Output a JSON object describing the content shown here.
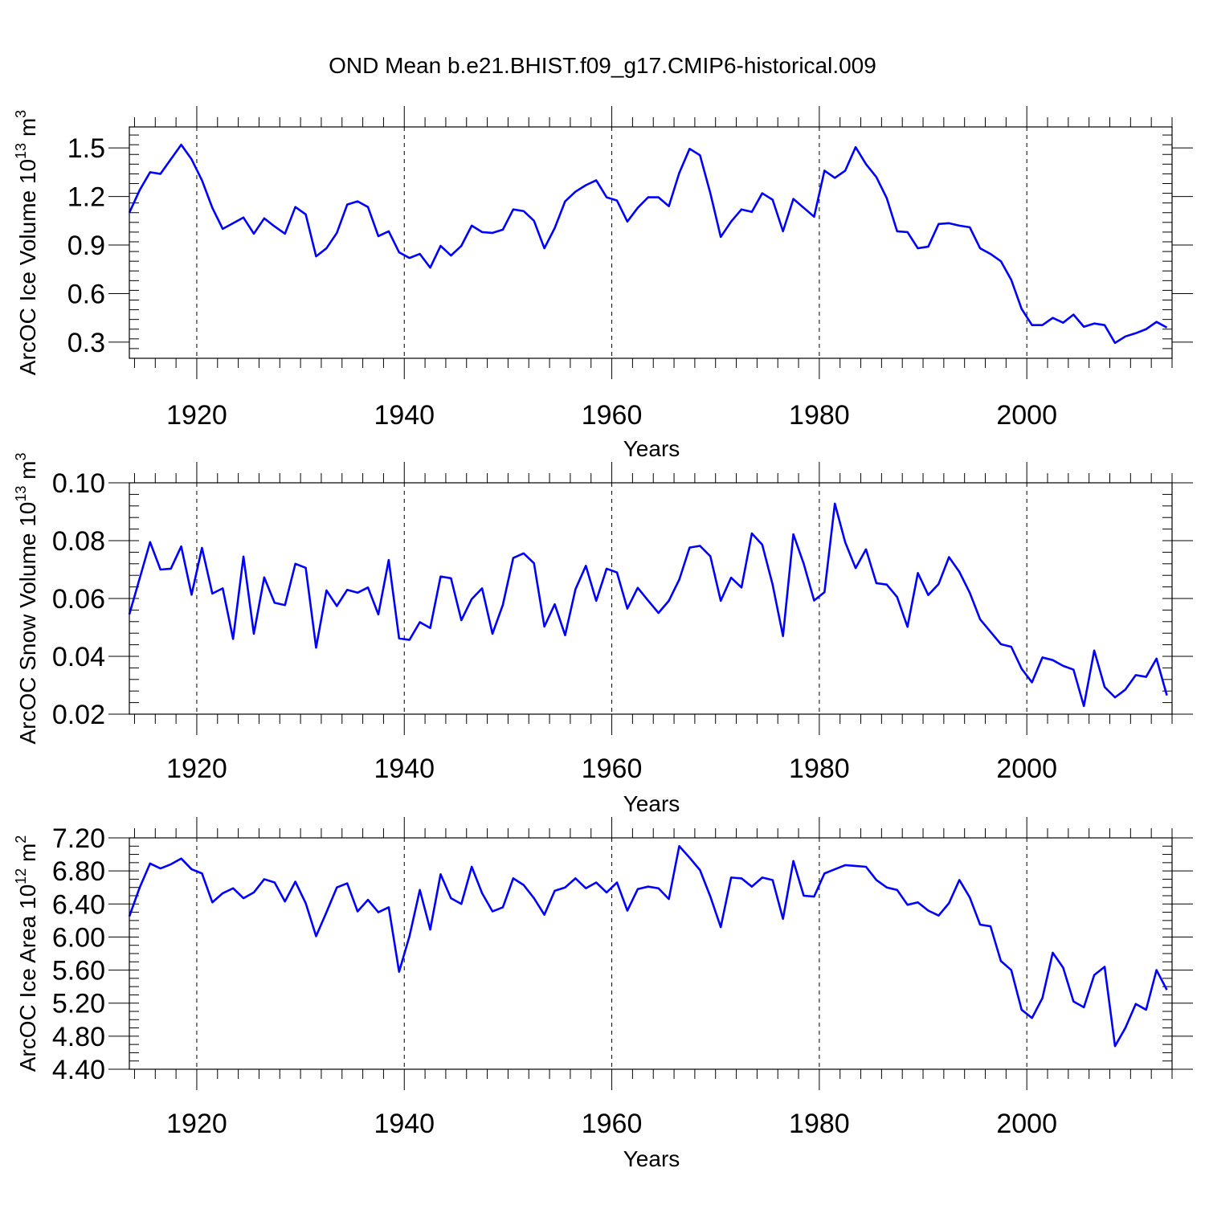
{
  "figure_title": "OND Mean b.e21.BHIST.f09_g17.CMIP6-historical.009",
  "colors": {
    "series": "#0000ff"
  },
  "chart_data": [
    {
      "type": "line",
      "name": "ice-volume",
      "title": "OND Mean b.e21.BHIST.f09_g17.CMIP6-historical.009",
      "xlabel": "Years",
      "ylabel": {
        "base": "ArcOC Ice Volume 10",
        "exp": "13",
        "unit": " m",
        "unit_exp": "3"
      },
      "xlim": [
        1913.5,
        2014
      ],
      "ylim": [
        0.2,
        1.63
      ],
      "xticks": [
        1920,
        1940,
        1960,
        1980,
        2000
      ],
      "yticks": [
        0.3,
        0.6,
        0.9,
        1.2,
        1.5
      ],
      "ytick_labels": [
        "0.3",
        "0.6",
        "0.9",
        "1.2",
        "1.5"
      ],
      "y_minor_step": 0.06,
      "x_start": 1913.5,
      "values": [
        1.1,
        1.24,
        1.35,
        1.34,
        1.43,
        1.52,
        1.43,
        1.3,
        1.13,
        1.0,
        1.035,
        1.07,
        0.97,
        1.065,
        1.015,
        0.97,
        1.135,
        1.09,
        0.83,
        0.88,
        0.975,
        1.15,
        1.17,
        1.135,
        0.955,
        0.985,
        0.855,
        0.82,
        0.845,
        0.76,
        0.895,
        0.835,
        0.895,
        1.02,
        0.98,
        0.975,
        0.995,
        1.12,
        1.11,
        1.05,
        0.88,
        1.005,
        1.17,
        1.23,
        1.27,
        1.3,
        1.195,
        1.175,
        1.045,
        1.13,
        1.195,
        1.195,
        1.14,
        1.345,
        1.495,
        1.455,
        1.22,
        0.95,
        1.045,
        1.12,
        1.105,
        1.22,
        1.18,
        0.985,
        1.185,
        1.13,
        1.075,
        1.36,
        1.315,
        1.36,
        1.505,
        1.4,
        1.32,
        1.19,
        0.985,
        0.98,
        0.88,
        0.89,
        1.03,
        1.035,
        1.02,
        1.01,
        0.88,
        0.845,
        0.8,
        0.685,
        0.505,
        0.405,
        0.405,
        0.45,
        0.42,
        0.47,
        0.395,
        0.415,
        0.405,
        0.295,
        0.335,
        0.355,
        0.38,
        0.425,
        0.39
      ]
    },
    {
      "type": "line",
      "name": "snow-volume",
      "xlabel": "Years",
      "ylabel": {
        "base": "ArcOC Snow Volume 10",
        "exp": "13",
        "unit": " m",
        "unit_exp": "3"
      },
      "xlim": [
        1913.5,
        2014
      ],
      "ylim": [
        0.02,
        0.1
      ],
      "xticks": [
        1920,
        1940,
        1960,
        1980,
        2000
      ],
      "yticks": [
        0.02,
        0.04,
        0.06,
        0.08,
        0.1
      ],
      "ytick_labels": [
        "0.02",
        "0.04",
        "0.06",
        "0.08",
        "0.10"
      ],
      "y_minor_step": 0.004,
      "x_start": 1913.5,
      "values": [
        0.0545,
        0.067,
        0.0795,
        0.07,
        0.0703,
        0.078,
        0.0613,
        0.0775,
        0.0617,
        0.0635,
        0.046,
        0.0745,
        0.0478,
        0.0673,
        0.0585,
        0.0577,
        0.072,
        0.0706,
        0.043,
        0.0628,
        0.0574,
        0.063,
        0.062,
        0.0638,
        0.0545,
        0.0733,
        0.0462,
        0.0457,
        0.0518,
        0.0498,
        0.0676,
        0.067,
        0.0525,
        0.0598,
        0.0635,
        0.0478,
        0.0578,
        0.074,
        0.0756,
        0.0722,
        0.0503,
        0.058,
        0.0473,
        0.0632,
        0.0713,
        0.0592,
        0.0703,
        0.069,
        0.0565,
        0.0637,
        0.0593,
        0.055,
        0.0592,
        0.0665,
        0.0776,
        0.0782,
        0.0746,
        0.0592,
        0.0672,
        0.0638,
        0.0825,
        0.0786,
        0.0648,
        0.047,
        0.0822,
        0.072,
        0.0593,
        0.0622,
        0.0928,
        0.0794,
        0.0705,
        0.077,
        0.0653,
        0.0648,
        0.0605,
        0.0502,
        0.0688,
        0.0612,
        0.065,
        0.0743,
        0.0692,
        0.062,
        0.0528,
        0.0485,
        0.0442,
        0.0433,
        0.0357,
        0.031,
        0.0396,
        0.0387,
        0.0367,
        0.0354,
        0.0228,
        0.042,
        0.0294,
        0.0258,
        0.0285,
        0.0335,
        0.0329,
        0.0392,
        0.0265
      ]
    },
    {
      "type": "line",
      "name": "ice-area",
      "xlabel": "Years",
      "ylabel": {
        "base": "ArcOC Ice Area 10",
        "exp": "12",
        "unit": " m",
        "unit_exp": "2"
      },
      "xlim": [
        1913.5,
        2014
      ],
      "ylim": [
        4.4,
        7.2
      ],
      "xticks": [
        1920,
        1940,
        1960,
        1980,
        2000
      ],
      "yticks": [
        4.4,
        4.8,
        5.2,
        5.6,
        6.0,
        6.4,
        6.8,
        7.2
      ],
      "ytick_labels": [
        "4.40",
        "4.80",
        "5.20",
        "5.60",
        "6.00",
        "6.40",
        "6.80",
        "7.20"
      ],
      "y_minor_step": 0.1,
      "x_start": 1913.5,
      "values": [
        6.25,
        6.6,
        6.89,
        6.83,
        6.88,
        6.95,
        6.82,
        6.77,
        6.42,
        6.53,
        6.59,
        6.47,
        6.54,
        6.7,
        6.66,
        6.43,
        6.67,
        6.41,
        6.01,
        6.3,
        6.6,
        6.65,
        6.31,
        6.45,
        6.3,
        6.36,
        5.58,
        6.01,
        6.57,
        6.09,
        6.76,
        6.47,
        6.4,
        6.85,
        6.53,
        6.31,
        6.36,
        6.71,
        6.63,
        6.47,
        6.27,
        6.56,
        6.6,
        6.71,
        6.59,
        6.66,
        6.54,
        6.66,
        6.32,
        6.58,
        6.61,
        6.59,
        6.46,
        7.1,
        6.96,
        6.81,
        6.49,
        6.12,
        6.72,
        6.71,
        6.61,
        6.72,
        6.69,
        6.22,
        6.92,
        6.5,
        6.49,
        6.77,
        6.82,
        6.87,
        6.86,
        6.85,
        6.69,
        6.6,
        6.57,
        6.39,
        6.42,
        6.32,
        6.26,
        6.41,
        6.69,
        6.48,
        6.15,
        6.13,
        5.71,
        5.6,
        5.12,
        5.02,
        5.26,
        5.81,
        5.63,
        5.22,
        5.15,
        5.54,
        5.64,
        4.68,
        4.9,
        5.19,
        5.12,
        5.6,
        5.36
      ]
    }
  ]
}
